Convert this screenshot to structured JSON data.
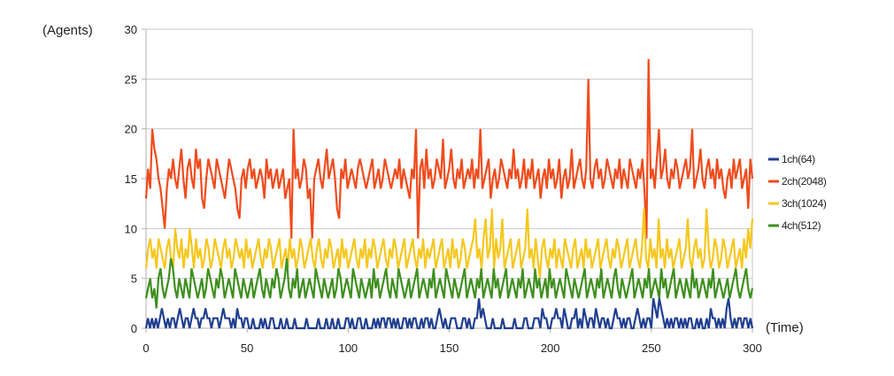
{
  "chart_data": {
    "type": "line",
    "xlabel": "(Time)",
    "ylabel": "(Agents)",
    "xlim": [
      0,
      300
    ],
    "ylim": [
      0,
      30
    ],
    "x_ticks": [
      0,
      50,
      100,
      150,
      200,
      250,
      300
    ],
    "y_ticks": [
      0,
      5,
      10,
      15,
      20,
      25,
      30
    ],
    "grid": "horizontal",
    "legend_position": "right",
    "series": [
      {
        "name": "1ch(64)",
        "color": "#1f3f8f",
        "values": [
          0,
          1,
          0,
          1,
          0,
          1,
          0,
          1,
          2,
          1,
          0,
          1,
          0,
          1,
          1,
          0,
          1,
          2,
          1,
          0,
          1,
          1,
          0,
          1,
          2,
          1,
          1,
          0,
          1,
          1,
          2,
          1,
          1,
          0,
          1,
          1,
          1,
          0,
          1,
          2,
          1,
          1,
          1,
          0,
          1,
          0,
          2,
          1,
          1,
          0,
          1,
          1,
          0,
          0,
          1,
          0,
          0,
          0,
          1,
          0,
          1,
          0,
          0,
          1,
          1,
          0,
          0,
          0,
          1,
          0,
          0,
          1,
          0,
          0,
          0,
          1,
          0,
          0,
          0,
          0,
          0,
          1,
          0,
          0,
          0,
          0,
          0,
          1,
          0,
          0,
          0,
          1,
          0,
          0,
          1,
          0,
          0,
          1,
          0,
          0,
          0,
          1,
          1,
          0,
          1,
          0,
          0,
          1,
          1,
          0,
          0,
          1,
          0,
          0,
          0,
          1,
          0,
          1,
          0,
          1,
          1,
          0,
          1,
          1,
          0,
          1,
          0,
          1,
          0,
          0,
          1,
          1,
          0,
          1,
          0,
          1,
          1,
          0,
          0,
          1,
          0,
          1,
          1,
          0,
          1,
          0,
          0,
          1,
          2,
          1,
          0,
          1,
          0,
          0,
          1,
          1,
          1,
          0,
          0,
          0,
          1,
          1,
          0,
          1,
          0,
          0,
          1,
          1,
          3,
          1,
          2,
          1,
          0,
          0,
          0,
          1,
          0,
          0,
          0,
          0,
          1,
          0,
          0,
          0,
          0,
          0,
          1,
          0,
          0,
          0,
          0,
          1,
          1,
          0,
          0,
          0,
          1,
          1,
          1,
          0,
          2,
          1,
          1,
          0,
          0,
          1,
          1,
          2,
          1,
          1,
          0,
          2,
          1,
          0,
          0,
          1,
          1,
          2,
          0,
          1,
          0,
          2,
          1,
          0,
          1,
          1,
          0,
          2,
          1,
          0,
          1,
          1,
          0,
          1,
          0,
          0,
          1,
          2,
          1,
          1,
          0,
          1,
          0,
          1,
          1,
          0,
          0,
          1,
          2,
          1,
          0,
          1,
          0,
          1,
          1,
          0,
          3,
          2,
          1,
          3,
          2,
          1,
          0,
          1,
          0,
          1,
          0,
          1,
          1,
          0,
          1,
          0,
          1,
          0,
          1,
          1,
          0,
          0,
          1,
          0,
          1,
          0,
          0,
          1,
          0,
          2,
          1,
          1,
          0,
          1,
          0,
          1,
          0,
          2,
          3,
          1,
          0,
          1,
          0,
          1,
          1,
          0,
          1,
          1,
          0,
          1,
          0
        ]
      },
      {
        "name": "2ch(2048)",
        "color": "#f04b1c",
        "values": [
          13,
          16,
          14,
          20,
          18,
          17,
          15,
          14,
          12,
          10,
          14,
          16,
          15,
          17,
          15,
          14,
          16,
          18,
          15,
          13,
          16,
          17,
          15,
          14,
          18,
          16,
          17,
          13,
          12,
          15,
          17,
          16,
          15,
          14,
          17,
          16,
          15,
          14,
          13,
          15,
          17,
          16,
          15,
          14,
          12,
          11,
          15,
          16,
          14,
          16,
          17,
          15,
          16,
          14,
          15,
          16,
          15,
          13,
          17,
          15,
          16,
          14,
          15,
          16,
          14,
          15,
          16,
          13,
          14,
          15,
          9,
          20,
          15,
          16,
          14,
          15,
          17,
          16,
          13,
          14,
          9,
          15,
          16,
          17,
          15,
          14,
          16,
          18,
          15,
          16,
          17,
          15,
          12,
          11,
          16,
          15,
          17,
          14,
          15,
          16,
          15,
          14,
          16,
          17,
          16,
          15,
          14,
          15,
          16,
          17,
          14,
          15,
          16,
          14,
          15,
          17,
          16,
          15,
          14,
          15,
          16,
          15,
          17,
          14,
          16,
          15,
          14,
          13,
          16,
          15,
          20,
          9,
          16,
          17,
          14,
          18,
          15,
          16,
          14,
          15,
          17,
          16,
          15,
          19,
          14,
          15,
          16,
          18,
          15,
          14,
          16,
          15,
          17,
          14,
          15,
          16,
          15,
          17,
          14,
          16,
          15,
          20,
          14,
          15,
          16,
          17,
          13,
          15,
          16,
          14,
          15,
          17,
          16,
          15,
          14,
          16,
          15,
          18,
          15,
          16,
          14,
          15,
          17,
          14,
          16,
          15,
          17,
          14,
          15,
          16,
          13,
          15,
          16,
          14,
          17,
          15,
          16,
          14,
          15,
          17,
          13,
          15,
          16,
          14,
          15,
          18,
          14,
          15,
          16,
          17,
          15,
          14,
          16,
          25,
          15,
          14,
          16,
          17,
          15,
          16,
          14,
          15,
          17,
          16,
          15,
          14,
          16,
          15,
          17,
          14,
          16,
          15,
          14,
          17,
          16,
          15,
          14,
          16,
          15,
          17,
          14,
          9,
          27,
          15,
          16,
          14,
          17,
          20,
          15,
          16,
          18,
          15,
          14,
          16,
          15,
          17,
          16,
          14,
          15,
          16,
          17,
          15,
          16,
          20,
          14,
          15,
          16,
          18,
          15,
          14,
          16,
          17,
          15,
          16,
          14,
          17,
          15,
          16,
          14,
          13,
          15,
          16,
          14,
          17,
          15,
          16,
          17,
          14,
          15,
          16,
          12,
          17,
          15
        ]
      },
      {
        "name": "3ch(1024)",
        "color": "#f6c71d",
        "values": [
          6,
          8,
          9,
          7,
          8,
          6,
          9,
          8,
          7,
          6,
          8,
          9,
          7,
          6,
          10,
          8,
          7,
          9,
          6,
          8,
          7,
          10,
          8,
          6,
          9,
          7,
          8,
          6,
          7,
          9,
          8,
          6,
          7,
          9,
          8,
          7,
          6,
          8,
          9,
          7,
          8,
          6,
          7,
          9,
          8,
          7,
          8,
          6,
          9,
          7,
          8,
          6,
          7,
          8,
          9,
          7,
          6,
          8,
          7,
          9,
          8,
          6,
          7,
          8,
          9,
          6,
          7,
          8,
          6,
          9,
          7,
          8,
          6,
          7,
          9,
          8,
          6,
          7,
          8,
          9,
          7,
          6,
          8,
          9,
          7,
          6,
          8,
          7,
          9,
          8,
          6,
          7,
          8,
          6,
          9,
          7,
          8,
          6,
          7,
          8,
          9,
          7,
          6,
          8,
          7,
          9,
          6,
          8,
          7,
          9,
          8,
          6,
          7,
          8,
          9,
          7,
          6,
          8,
          7,
          9,
          8,
          6,
          7,
          8,
          9,
          6,
          7,
          8,
          9,
          7,
          6,
          8,
          7,
          9,
          6,
          8,
          7,
          8,
          9,
          6,
          7,
          8,
          9,
          6,
          7,
          8,
          6,
          9,
          7,
          8,
          6,
          7,
          9,
          8,
          6,
          7,
          8,
          9,
          11,
          7,
          8,
          6,
          9,
          11,
          7,
          8,
          12,
          6,
          9,
          7,
          8,
          11,
          6,
          7,
          8,
          9,
          6,
          7,
          8,
          9,
          6,
          7,
          8,
          12,
          7,
          8,
          6,
          9,
          7,
          5,
          8,
          9,
          7,
          6,
          8,
          7,
          9,
          6,
          8,
          7,
          6,
          9,
          8,
          7,
          6,
          8,
          9,
          6,
          7,
          8,
          6,
          9,
          7,
          8,
          6,
          7,
          8,
          9,
          6,
          7,
          8,
          9,
          7,
          6,
          8,
          7,
          9,
          8,
          6,
          7,
          8,
          9,
          6,
          7,
          8,
          9,
          7,
          6,
          8,
          12,
          7,
          6,
          9,
          7,
          8,
          6,
          11,
          7,
          8,
          6,
          9,
          7,
          8,
          6,
          7,
          8,
          9,
          6,
          7,
          8,
          11,
          7,
          6,
          8,
          9,
          7,
          8,
          6,
          7,
          12,
          8,
          6,
          7,
          9,
          8,
          6,
          7,
          9,
          8,
          6,
          7,
          8,
          9,
          6,
          7,
          8,
          6,
          9,
          7,
          10,
          8,
          11
        ]
      },
      {
        "name": "4ch(512)",
        "color": "#3e8f1e",
        "values": [
          3,
          4,
          5,
          3,
          4,
          2,
          5,
          6,
          4,
          3,
          4,
          5,
          7,
          6,
          4,
          3,
          5,
          4,
          3,
          5,
          4,
          3,
          6,
          5,
          4,
          3,
          4,
          5,
          3,
          4,
          6,
          5,
          4,
          3,
          5,
          4,
          6,
          5,
          3,
          4,
          5,
          4,
          3,
          6,
          5,
          4,
          3,
          5,
          4,
          3,
          4,
          5,
          3,
          4,
          5,
          6,
          4,
          3,
          5,
          4,
          3,
          5,
          4,
          6,
          5,
          3,
          4,
          5,
          7,
          4,
          3,
          5,
          4,
          6,
          3,
          4,
          5,
          3,
          4,
          5,
          4,
          3,
          6,
          5,
          4,
          3,
          5,
          4,
          3,
          4,
          5,
          3,
          4,
          6,
          5,
          3,
          4,
          5,
          4,
          3,
          6,
          5,
          4,
          3,
          5,
          4,
          3,
          4,
          5,
          3,
          6,
          4,
          5,
          3,
          4,
          5,
          6,
          4,
          3,
          5,
          4,
          3,
          6,
          5,
          4,
          3,
          4,
          5,
          3,
          4,
          5,
          6,
          3,
          4,
          5,
          4,
          3,
          5,
          4,
          6,
          3,
          4,
          5,
          4,
          3,
          6,
          5,
          4,
          3,
          5,
          4,
          3,
          4,
          5,
          6,
          3,
          4,
          5,
          4,
          3,
          5,
          4,
          6,
          3,
          4,
          5,
          4,
          3,
          6,
          4,
          5,
          3,
          4,
          5,
          6,
          3,
          4,
          5,
          4,
          3,
          5,
          4,
          6,
          3,
          4,
          5,
          4,
          3,
          6,
          4,
          5,
          3,
          4,
          5,
          3,
          6,
          4,
          5,
          3,
          4,
          5,
          4,
          3,
          6,
          5,
          4,
          3,
          5,
          4,
          3,
          4,
          5,
          6,
          3,
          4,
          5,
          4,
          3,
          5,
          4,
          6,
          3,
          4,
          5,
          4,
          3,
          5,
          6,
          4,
          3,
          5,
          4,
          3,
          4,
          5,
          6,
          3,
          4,
          5,
          4,
          3,
          5,
          4,
          6,
          3,
          4,
          5,
          4,
          3,
          6,
          4,
          5,
          3,
          4,
          5,
          6,
          3,
          4,
          5,
          4,
          3,
          5,
          4,
          3,
          6,
          4,
          5,
          3,
          4,
          5,
          4,
          3,
          5,
          4,
          6,
          3,
          4,
          5,
          4,
          3,
          4,
          5,
          3,
          4,
          5,
          6,
          4,
          3,
          4,
          5,
          6,
          4,
          3,
          4
        ]
      }
    ]
  }
}
